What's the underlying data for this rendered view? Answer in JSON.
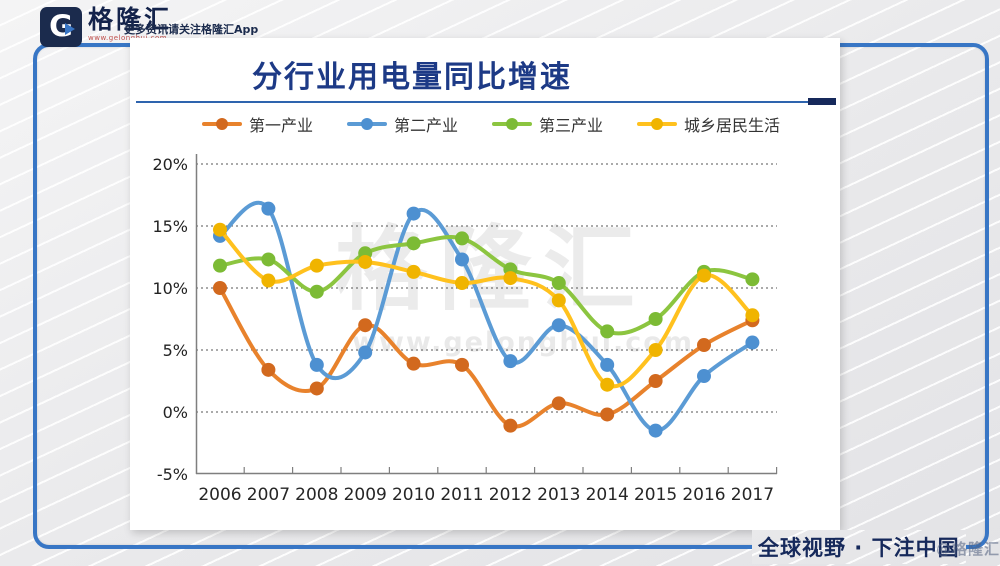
{
  "header": {
    "logo": {
      "letter": "G",
      "brand": "格隆汇",
      "site": "www.gelonghui.com"
    },
    "tagline": "更多资讯请关注格隆汇App"
  },
  "watermark": {
    "brand": "格隆汇",
    "site": "www.gelonghui.com"
  },
  "footer": {
    "slogan": "全球视野 · 下注中国",
    "stamp": "@格隆汇"
  },
  "accent_colors": {
    "frame_blue": "#3876C5",
    "title_blue": "#1D3A86",
    "navy": "#16295B"
  },
  "chart_data": {
    "type": "line",
    "title": "分行业用电量同比增速",
    "xlabel": "",
    "ylabel": "",
    "ylim": [
      -5,
      20
    ],
    "grid": "horizontal-dotted",
    "legend_position": "top",
    "line_style": "smooth-with-markers",
    "categories": [
      2006,
      2007,
      2008,
      2009,
      2010,
      2011,
      2012,
      2013,
      2014,
      2015,
      2016,
      2017
    ],
    "yticks": [
      "20%",
      "15%",
      "10%",
      "5%",
      "0%",
      "-5%"
    ],
    "ytick_values": [
      20,
      15,
      10,
      5,
      0,
      -5
    ],
    "series": [
      {
        "name": "第一产业",
        "color": "#E8822C",
        "dot_color": "#D2691E",
        "values": [
          10.0,
          3.4,
          1.9,
          7.0,
          3.9,
          3.8,
          -1.1,
          0.7,
          -0.2,
          2.5,
          5.4,
          7.4
        ]
      },
      {
        "name": "第二产业",
        "color": "#5B9BD5",
        "dot_color": "#4D90D1",
        "values": [
          14.2,
          16.4,
          3.8,
          4.8,
          16.0,
          12.3,
          4.1,
          7.0,
          3.8,
          -1.5,
          2.9,
          5.6
        ]
      },
      {
        "name": "第三产业",
        "color": "#8CC540",
        "dot_color": "#7CBB35",
        "values": [
          11.8,
          12.3,
          9.7,
          12.8,
          13.6,
          14.0,
          11.5,
          10.4,
          6.5,
          7.5,
          11.3,
          10.7
        ]
      },
      {
        "name": "城乡居民生活",
        "color": "#FFC11E",
        "dot_color": "#F0B400",
        "values": [
          14.7,
          10.6,
          11.8,
          12.1,
          11.3,
          10.4,
          10.8,
          9.0,
          2.2,
          5.0,
          11.0,
          7.8
        ]
      }
    ]
  }
}
